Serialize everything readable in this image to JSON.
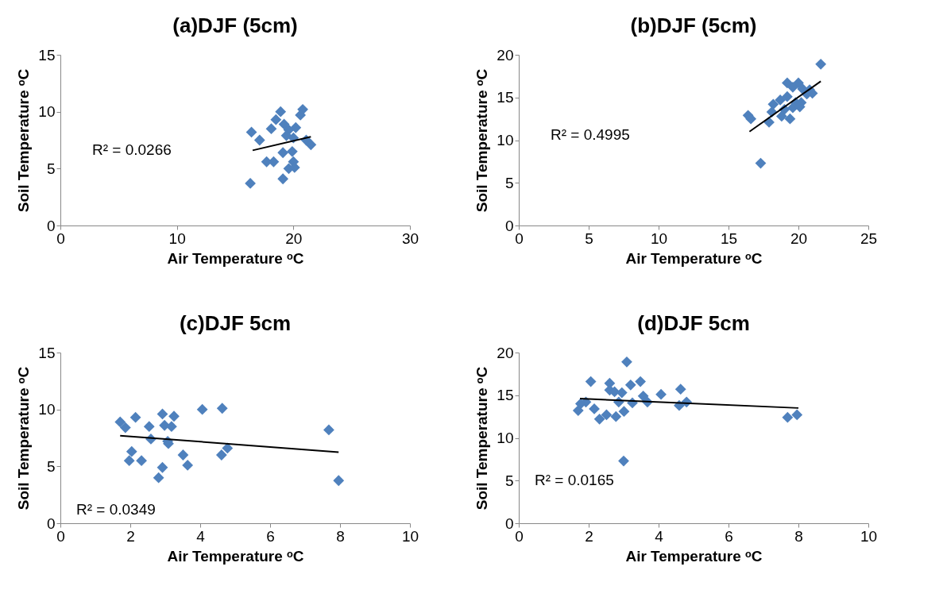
{
  "chart_data": [
    {
      "type": "scatter",
      "title": "(a)DJF (5cm)",
      "xlabel": "Air Temperature ᵒC",
      "ylabel": "Soil Temperature ᵒC",
      "xlim": [
        0,
        30
      ],
      "xticks": [
        0,
        10,
        20,
        30
      ],
      "ylim": [
        0,
        15
      ],
      "yticks": [
        0,
        5,
        10,
        15
      ],
      "annotations": [
        "R² = 0.0266"
      ],
      "series": [
        {
          "color": "#4f81bd",
          "marker": "diamond",
          "x": [
            16.4,
            17.1,
            18.9,
            20.8,
            20.6,
            18.5,
            18.1,
            19.2,
            19.6,
            20.2,
            21.1,
            21.5,
            19.1,
            19.9,
            17.7,
            18.3,
            20.0,
            19.6,
            20.1,
            19.1,
            16.3,
            20.0,
            19.4
          ],
          "values": [
            8.2,
            7.5,
            10.0,
            10.2,
            9.7,
            9.3,
            8.5,
            8.9,
            8.4,
            8.6,
            7.5,
            7.1,
            6.4,
            6.5,
            5.6,
            5.6,
            5.6,
            5.0,
            5.1,
            4.1,
            3.7,
            7.7,
            7.9
          ]
        },
        {
          "type": "line",
          "color": "#000000",
          "x": [
            16.5,
            21.5
          ],
          "values": [
            6.6,
            7.8
          ]
        }
      ]
    },
    {
      "type": "scatter",
      "title": "(b)DJF (5cm)",
      "xlabel": "Air Temperature ᵒC",
      "ylabel": "Soil Temperature ᵒC",
      "xlim": [
        0,
        25
      ],
      "xticks": [
        0,
        5,
        10,
        15,
        20,
        25
      ],
      "ylim": [
        0,
        20
      ],
      "yticks": [
        0,
        5,
        10,
        15,
        20
      ],
      "annotations": [
        "R² = 0.4995"
      ],
      "series": [
        {
          "color": "#4f81bd",
          "marker": "diamond",
          "x": [
            21.6,
            19.2,
            20.0,
            19.6,
            20.3,
            20.8,
            20.6,
            21.0,
            19.2,
            18.7,
            19.8,
            20.2,
            18.2,
            19.6,
            20.1,
            19.0,
            18.1,
            18.8,
            19.4,
            17.9,
            16.4,
            16.6,
            17.3
          ],
          "values": [
            18.9,
            16.7,
            16.7,
            16.2,
            16.0,
            15.9,
            15.4,
            15.5,
            15.1,
            14.7,
            14.4,
            14.4,
            14.2,
            13.8,
            13.9,
            13.6,
            13.3,
            12.8,
            12.5,
            12.1,
            12.9,
            12.5,
            7.3
          ]
        },
        {
          "type": "line",
          "color": "#000000",
          "x": [
            16.5,
            21.6
          ],
          "values": [
            11.0,
            16.9
          ]
        }
      ]
    },
    {
      "type": "scatter",
      "title": "(c)DJF 5cm",
      "xlabel": "Air Temperature ᵒC",
      "ylabel": "Soil Temperature ᵒC",
      "xlim": [
        0,
        10
      ],
      "xticks": [
        0,
        2,
        4,
        6,
        8,
        10
      ],
      "ylim": [
        0,
        15
      ],
      "yticks": [
        0,
        5,
        10,
        15
      ],
      "annotations": [
        "R² = 0.0349"
      ],
      "series": [
        {
          "color": "#4f81bd",
          "marker": "diamond",
          "x": [
            1.71,
            1.86,
            2.15,
            2.54,
            2.92,
            3.25,
            2.98,
            3.18,
            2.59,
            3.07,
            3.09,
            2.04,
            1.97,
            2.32,
            3.51,
            3.64,
            2.92,
            2.81,
            4.06,
            4.63,
            4.78,
            4.61,
            7.68,
            7.96
          ],
          "values": [
            8.9,
            8.4,
            9.3,
            8.5,
            9.6,
            9.4,
            8.6,
            8.5,
            7.4,
            7.2,
            7.0,
            6.3,
            5.5,
            5.5,
            6.0,
            5.1,
            4.9,
            4.0,
            10.0,
            10.1,
            6.6,
            6.0,
            8.2,
            3.75
          ]
        },
        {
          "type": "line",
          "color": "#000000",
          "x": [
            1.71,
            7.96
          ],
          "values": [
            7.7,
            6.25
          ]
        }
      ]
    },
    {
      "type": "scatter",
      "title": "(d)DJF 5cm",
      "xlabel": "Air Temperature ᵒC",
      "ylabel": "Soil Temperature ᵒC",
      "xlim": [
        0,
        10
      ],
      "xticks": [
        0,
        2,
        4,
        6,
        8,
        10
      ],
      "ylim": [
        0,
        20
      ],
      "yticks": [
        0,
        5,
        10,
        15,
        20
      ],
      "annotations": [
        "R² = 0.0165"
      ],
      "series": [
        {
          "color": "#4f81bd",
          "marker": "diamond",
          "x": [
            3.09,
            2.06,
            2.6,
            3.2,
            3.48,
            4.63,
            2.6,
            2.74,
            2.95,
            3.56,
            4.07,
            3.68,
            4.8,
            4.59,
            3.25,
            2.86,
            1.92,
            1.77,
            2.16,
            1.7,
            2.51,
            2.31,
            2.78,
            3.01,
            3.0,
            7.69,
            7.96
          ],
          "values": [
            18.9,
            16.6,
            16.4,
            16.2,
            16.6,
            15.7,
            15.6,
            15.4,
            15.3,
            14.9,
            15.1,
            14.2,
            14.2,
            13.8,
            14.1,
            14.2,
            14.2,
            14.0,
            13.4,
            13.2,
            12.7,
            12.2,
            12.5,
            13.1,
            7.3,
            12.4,
            12.7
          ]
        },
        {
          "type": "line",
          "color": "#000000",
          "x": [
            1.75,
            8.0
          ],
          "values": [
            14.6,
            13.5
          ]
        }
      ]
    }
  ]
}
